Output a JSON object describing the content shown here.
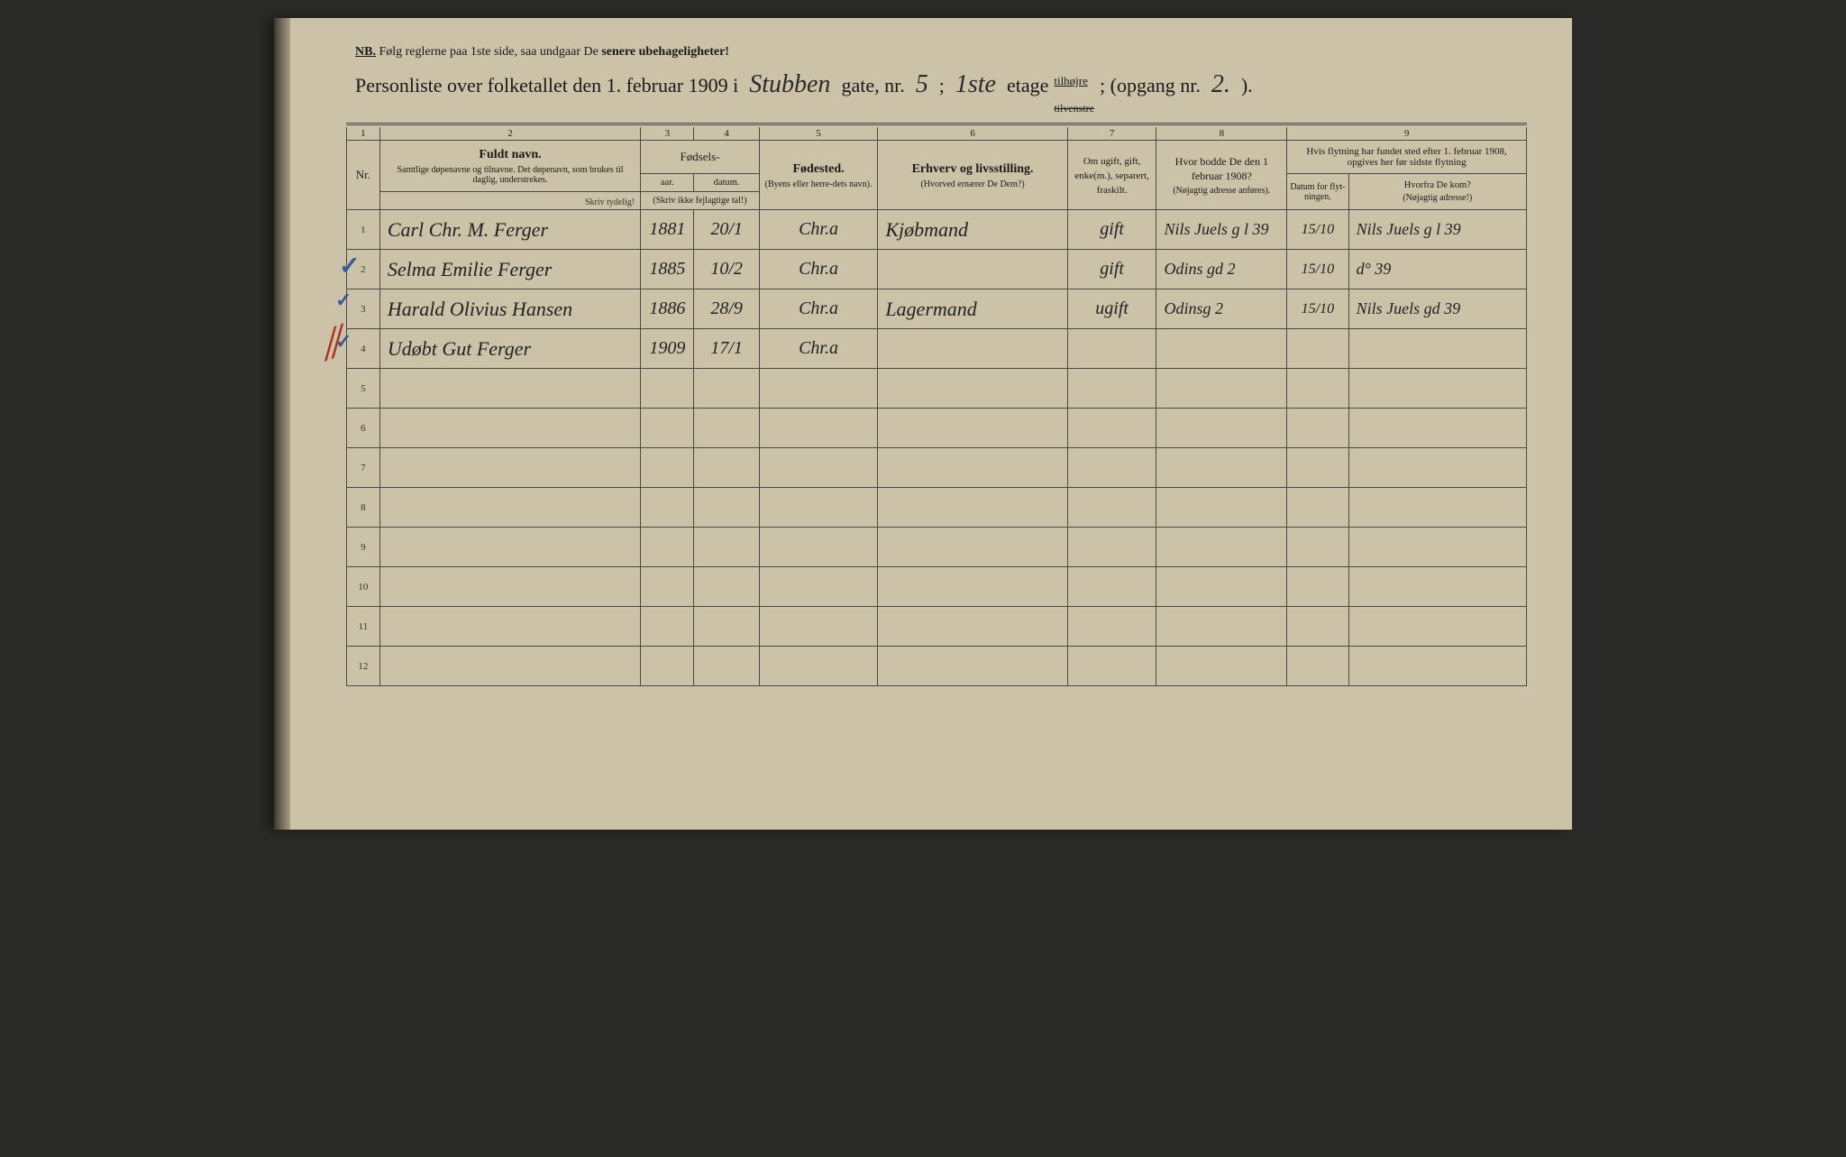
{
  "page_bg": "#ccc2a8",
  "ink": "#1a1a1a",
  "border": "#4a4a4a",
  "nb": {
    "prefix": "NB.",
    "text_a": "Følg reglerne paa 1ste side, saa undgaar De ",
    "text_b": "senere ubehageligheter!"
  },
  "title": {
    "a": "Personliste over folketallet den 1. februar 1909 i",
    "street_hand": "Stubben",
    "b": "gate, nr.",
    "nr_hand": "5",
    "c": ";",
    "etage_hand": "1ste",
    "d": "etage",
    "tilhojre": "tilhøjre",
    "tilvenstre_strike": "tilvenstre",
    "e": "; (opgang nr.",
    "opgang_hand": "2.",
    "f": ")."
  },
  "colnums": [
    "1",
    "2",
    "3",
    "4",
    "5",
    "6",
    "7",
    "8",
    "9"
  ],
  "head": {
    "nr": "Nr.",
    "fuldt": "Fuldt navn.",
    "fuldt_sub": "Samtlige døpenavne og tilnavne. Det døpenavn, som brukes til daglig, understrekes.",
    "fodsels": "Fødsels-",
    "aar": "aar.",
    "datum": "datum.",
    "skriv_ikke": "(Skriv ikke fejlagtige tal!)",
    "fodested": "Fødested.",
    "fodested_sub": "(Byens eller herre-dets navn).",
    "erhverv": "Erhverv og livsstilling.",
    "erhverv_sub": "(Hvorved ernærer De Dem?)",
    "om_ugift": "Om ugift, gift, enke(m.), separert, fraskilt.",
    "hvor_bodde": "Hvor bodde De den 1 februar 1908?",
    "hvor_bodde_sub": "(Nøjagtig adresse anføres).",
    "flytning": "Hvis flytning har fundet sted efter 1. februar 1908, opgives her før sidste flytning",
    "datum_flyt": "Datum for flyt-ningen.",
    "hvorfra": "Hvorfra De kom?",
    "hvorfra_sub": "(Nøjagtig adresse!)",
    "skriv_tydelig": "Skriv tydelig!"
  },
  "rows": [
    {
      "n": "1",
      "name": "Carl Chr. M. Ferger",
      "aar": "1881",
      "dat": "20/1",
      "sted": "Chr.a",
      "erhv": "Kjøbmand",
      "stat": "gift",
      "bod": "Nils Juels g l 39",
      "fdat": "15/10",
      "fra": "Nils Juels g l 39"
    },
    {
      "n": "2",
      "name": "Selma Emilie Ferger",
      "aar": "1885",
      "dat": "10/2",
      "sted": "Chr.a",
      "erhv": "",
      "stat": "gift",
      "bod": "Odins gd 2",
      "fdat": "15/10",
      "fra": "d°    39"
    },
    {
      "n": "3",
      "name": "Harald Olivius Hansen",
      "aar": "1886",
      "dat": "28/9",
      "sted": "Chr.a",
      "erhv": "Lagermand",
      "stat": "ugift",
      "bod": "Odinsg 2",
      "fdat": "15/10",
      "fra": "Nils Juels gd 39"
    },
    {
      "n": "4",
      "name": "Udøbt Gut Ferger",
      "aar": "1909",
      "dat": "17/1",
      "sted": "Chr.a",
      "erhv": "",
      "stat": "",
      "bod": "",
      "fdat": "",
      "fra": ""
    }
  ],
  "empty_rows": [
    "5",
    "6",
    "7",
    "8",
    "9",
    "10",
    "11",
    "12"
  ],
  "marks": {
    "tick1": "✓",
    "tick2": "✓",
    "tick3": "✓",
    "red_slash": "⁄⁄"
  }
}
